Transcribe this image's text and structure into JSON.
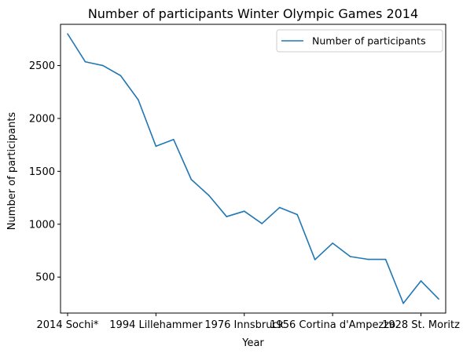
{
  "chart_data": {
    "type": "line",
    "title": "Number of participants Winter Olympic Games 2014",
    "xlabel": "Year",
    "ylabel": "Number of participants",
    "legend_position": "top-right",
    "grid": false,
    "xlim": [
      -0.4,
      21.4
    ],
    "ylim": [
      160,
      2890
    ],
    "yticks": [
      500,
      1000,
      1500,
      2000,
      2500
    ],
    "xticks": [
      {
        "index": 0,
        "label": "2014 Sochi*"
      },
      {
        "index": 5,
        "label": "1994 Lillehammer"
      },
      {
        "index": 10,
        "label": "1976 Innsbruck"
      },
      {
        "index": 15,
        "label": "1956 Cortina d'Ampezzo"
      },
      {
        "index": 20,
        "label": "1928 St. Moritz"
      }
    ],
    "series": [
      {
        "name": "Number of participants",
        "color": "#1f77b4",
        "x": [
          0,
          1,
          2,
          3,
          4,
          5,
          6,
          7,
          8,
          9,
          10,
          11,
          12,
          13,
          14,
          15,
          16,
          17,
          18,
          19,
          20,
          21
        ],
        "values": [
          2800,
          2536,
          2500,
          2405,
          2176,
          1737,
          1801,
          1423,
          1272,
          1072,
          1123,
          1006,
          1158,
          1091,
          665,
          821,
          694,
          668,
          668,
          252,
          464,
          293
        ]
      }
    ]
  }
}
